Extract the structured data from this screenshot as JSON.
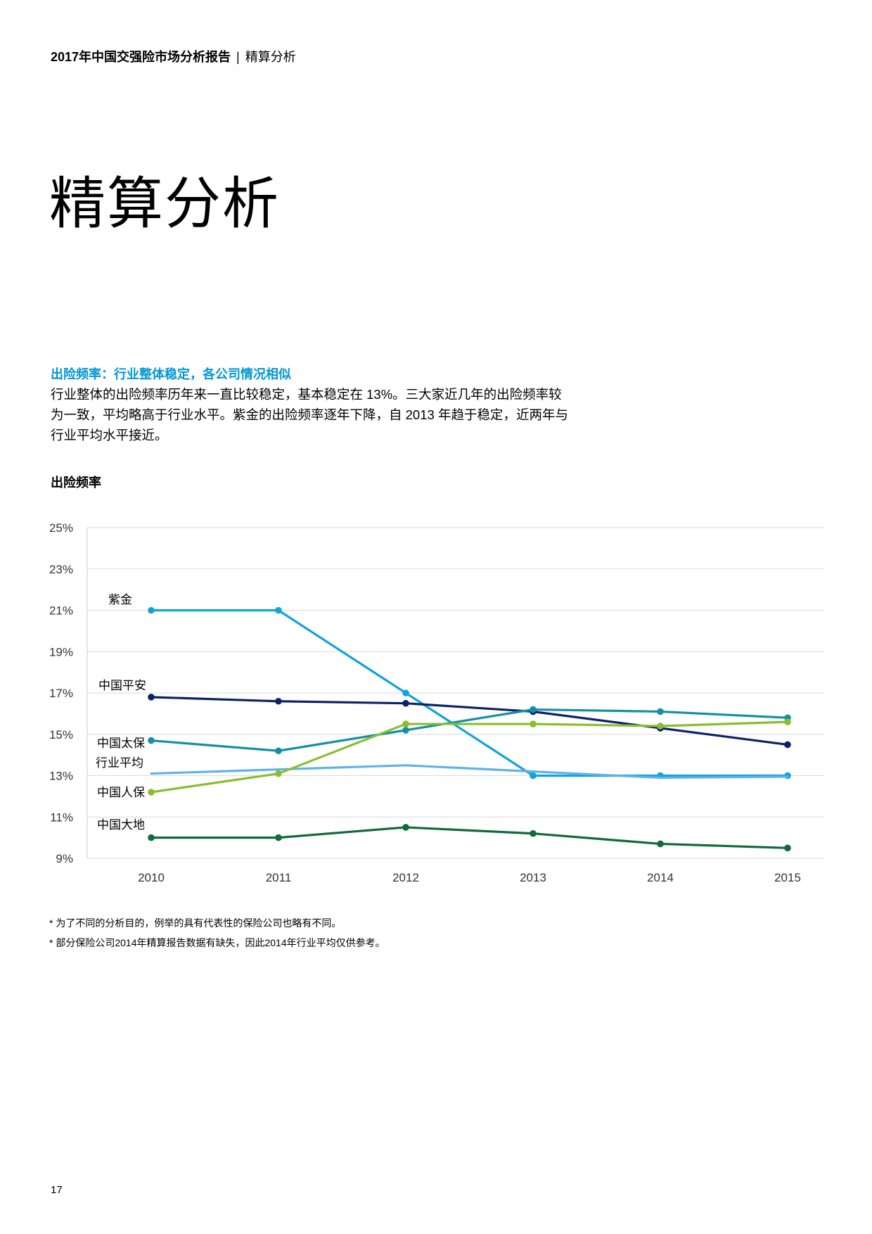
{
  "header": {
    "report_title": "2017年中国交强险市场分析报告",
    "separator": "|",
    "section": "精算分析"
  },
  "page_title": "精算分析",
  "section": {
    "heading": "出险频率：行业整体稳定，各公司情况相似",
    "body": "行业整体的出险频率历年来一直比较稳定，基本稳定在 13%。三大家近几年的出险频率较为一致，平均略高于行业水平。紫金的出险频率逐年下降，自 2013 年趋于稳定，近两年与行业平均水平接近。"
  },
  "chart_title": "出险频率",
  "chart_data": {
    "type": "line",
    "title": "出险频率",
    "x": [
      "2010",
      "2011",
      "2012",
      "2013",
      "2014",
      "2015"
    ],
    "y_ticks": [
      "25%",
      "23%",
      "21%",
      "19%",
      "17%",
      "15%",
      "13%",
      "11%",
      "9%"
    ],
    "ylim": [
      9,
      25
    ],
    "xlabel": "",
    "ylabel": "",
    "grid": true,
    "series": [
      {
        "name": "紫金",
        "color": "#12A3DB",
        "values": [
          21.0,
          21.0,
          17.0,
          13.0,
          13.0,
          13.0
        ],
        "markers": true
      },
      {
        "name": "中国平安",
        "color": "#0C2267",
        "values": [
          16.8,
          16.6,
          16.5,
          16.1,
          15.3,
          14.5
        ],
        "markers": true
      },
      {
        "name": "中国太保",
        "color": "#1390A8",
        "values": [
          14.7,
          14.2,
          15.2,
          16.2,
          16.1,
          15.8
        ],
        "markers": true
      },
      {
        "name": "行业平均",
        "color": "#5FB3E8",
        "values": [
          13.1,
          13.3,
          13.5,
          13.2,
          12.9,
          12.95
        ],
        "markers": false
      },
      {
        "name": "中国人保",
        "color": "#8BBD2E",
        "values": [
          12.2,
          13.1,
          15.5,
          15.5,
          15.4,
          15.6
        ],
        "markers": true
      },
      {
        "name": "中国大地",
        "color": "#0E6B3A",
        "values": [
          10.0,
          10.0,
          10.5,
          10.2,
          9.7,
          9.5
        ],
        "markers": true
      }
    ]
  },
  "footnotes": [
    "* 为了不同的分析目的，例举的具有代表性的保险公司也略有不同。",
    "* 部分保险公司2014年精算报告数据有缺失，因此2014年行业平均仅供参考。"
  ],
  "page_number": "17"
}
